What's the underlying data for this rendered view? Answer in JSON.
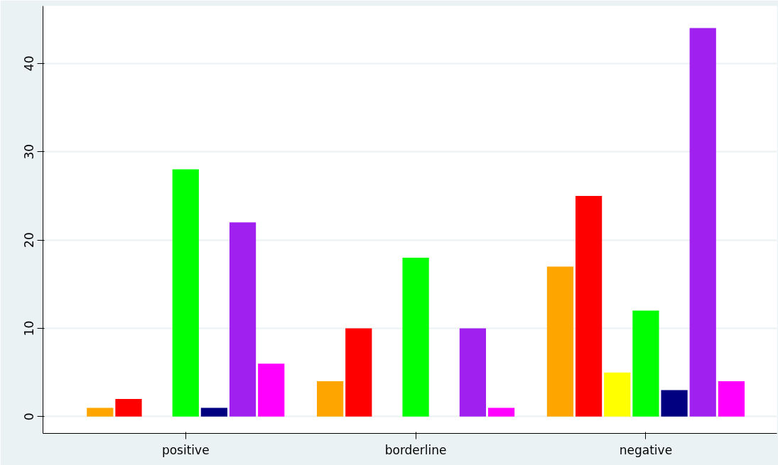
{
  "chart_data": {
    "type": "bar",
    "categories": [
      "positive",
      "borderline",
      "negative"
    ],
    "series": [
      {
        "color": "#ffa500",
        "values": [
          1,
          4,
          17
        ]
      },
      {
        "color": "#ff0000",
        "values": [
          2,
          10,
          25
        ]
      },
      {
        "color": "#ffff00",
        "values": [
          0,
          0,
          5
        ]
      },
      {
        "color": "#00ff00",
        "values": [
          28,
          18,
          12
        ]
      },
      {
        "color": "#000080",
        "values": [
          1,
          0,
          3
        ]
      },
      {
        "color": "#a020f0",
        "values": [
          22,
          10,
          44
        ]
      },
      {
        "color": "#ff00ff",
        "values": [
          6,
          1,
          4
        ]
      }
    ],
    "ylim": [
      -1.9,
      46.5
    ],
    "yticks": [
      0,
      10,
      20,
      30,
      40
    ],
    "grid": "y"
  }
}
